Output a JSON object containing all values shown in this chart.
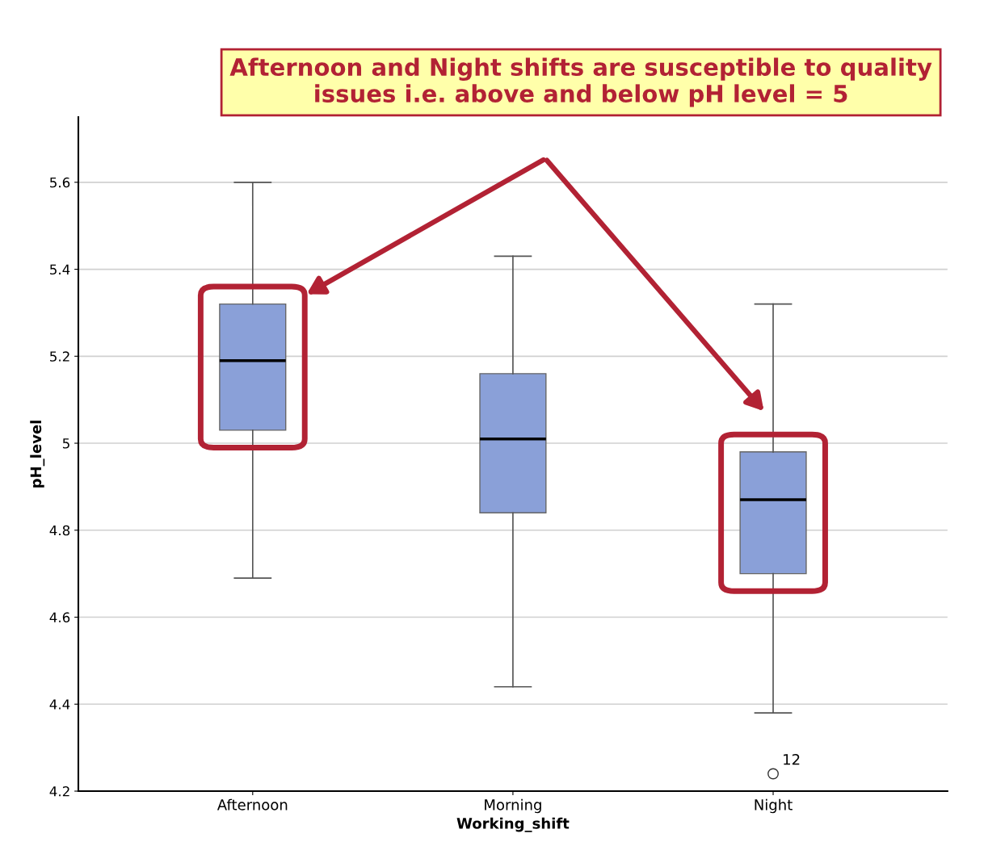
{
  "chart_data": {
    "type": "box",
    "xlabel": "Working_shift",
    "ylabel": "pH_level",
    "categories": [
      "Afternoon",
      "Morning",
      "Night"
    ],
    "boxes": [
      {
        "low": 4.69,
        "q1": 5.03,
        "median": 5.19,
        "q3": 5.32,
        "high": 5.6
      },
      {
        "low": 4.44,
        "q1": 4.84,
        "median": 5.01,
        "q3": 5.16,
        "high": 5.43
      },
      {
        "low": 4.38,
        "q1": 4.7,
        "median": 4.87,
        "q3": 4.98,
        "high": 5.32,
        "outliers": [
          4.24
        ]
      }
    ],
    "color": "#8aa0d8",
    "ylim": [
      4.2,
      5.75
    ],
    "yticks": [
      4.2,
      4.4,
      4.6,
      4.8,
      5,
      5.2,
      5.4,
      5.6
    ],
    "grid": "y",
    "legend": false,
    "annotations": [
      "Afternoon and Night shifts are susceptible to quality issues i.e. above and below pH level = 5",
      "12"
    ]
  }
}
